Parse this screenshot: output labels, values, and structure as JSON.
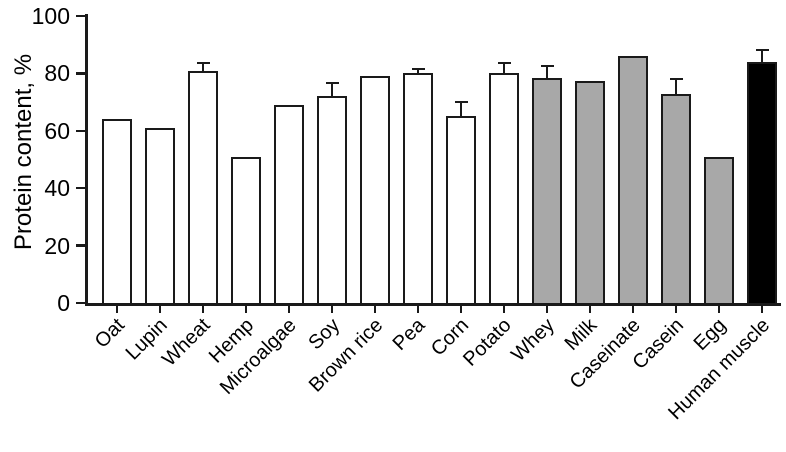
{
  "chart_data": {
    "type": "bar",
    "title": "",
    "ylabel": "Protein content, %",
    "xlabel": "",
    "ylim": [
      0,
      100
    ],
    "yticks": [
      0,
      20,
      40,
      60,
      80,
      100
    ],
    "grid": false,
    "legend": "none",
    "error_bars": "upper only",
    "bar_outline_color": "#1a1a1a",
    "group_fills": {
      "plant_protein": "#ffffff",
      "animal_dairy_protein": "#a8a8a8",
      "human_muscle": "#000000"
    },
    "categories": [
      "Oat",
      "Lupin",
      "Wheat",
      "Hemp",
      "Microalgae",
      "Soy",
      "Brown rice",
      "Pea",
      "Corn",
      "Potato",
      "Whey",
      "Milk",
      "Caseinate",
      "Casein",
      "Egg",
      "Human muscle"
    ],
    "values": [
      64,
      61,
      81,
      51,
      69,
      72,
      79,
      80,
      65,
      80,
      78.5,
      77.5,
      86,
      73,
      51,
      84
    ],
    "errors_plus": [
      null,
      null,
      2.5,
      null,
      null,
      4.5,
      null,
      1.5,
      5,
      3.5,
      4,
      null,
      null,
      5,
      null,
      4
    ],
    "bar_fills": [
      "#ffffff",
      "#ffffff",
      "#ffffff",
      "#ffffff",
      "#ffffff",
      "#ffffff",
      "#ffffff",
      "#ffffff",
      "#ffffff",
      "#ffffff",
      "#a8a8a8",
      "#a8a8a8",
      "#a8a8a8",
      "#a8a8a8",
      "#a8a8a8",
      "#000000"
    ]
  }
}
